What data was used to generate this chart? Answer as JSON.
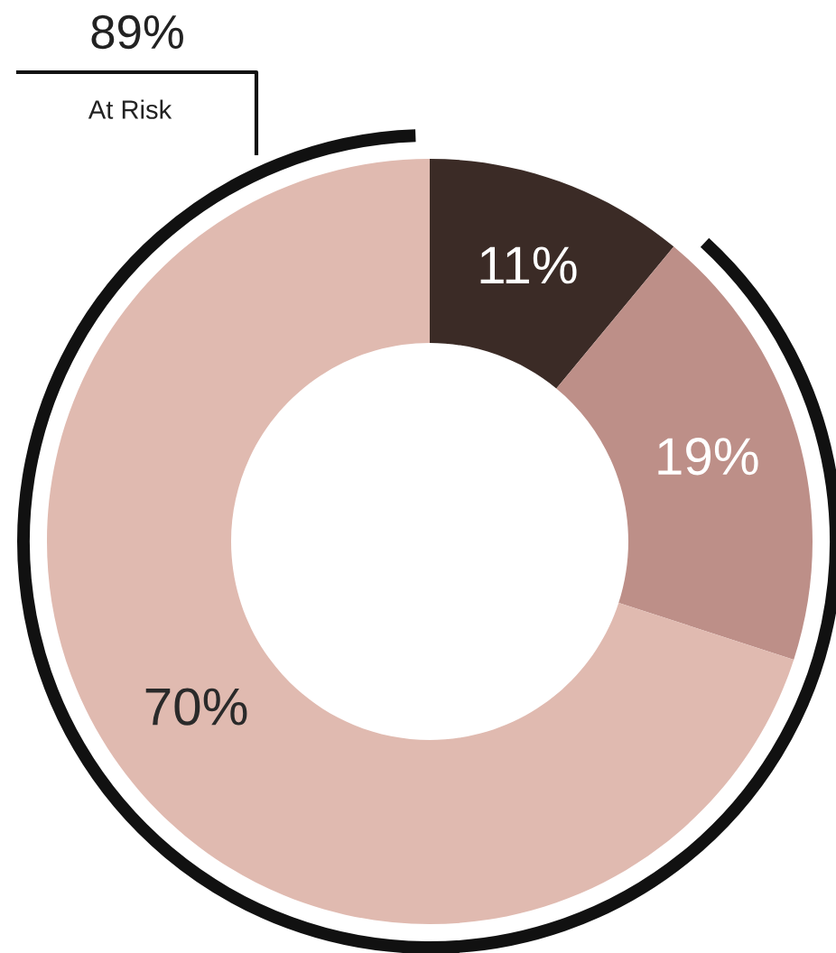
{
  "chart_data": {
    "type": "donut",
    "categories": [
      null,
      null,
      null
    ],
    "values": [
      11,
      19,
      70
    ],
    "colors": [
      "#3b2b26",
      "#bd8f88",
      "#e0bab0"
    ],
    "value_labels": [
      "11%",
      "19%",
      "70%"
    ],
    "annotations": [
      "89%",
      "At Risk"
    ],
    "legend": false
  }
}
